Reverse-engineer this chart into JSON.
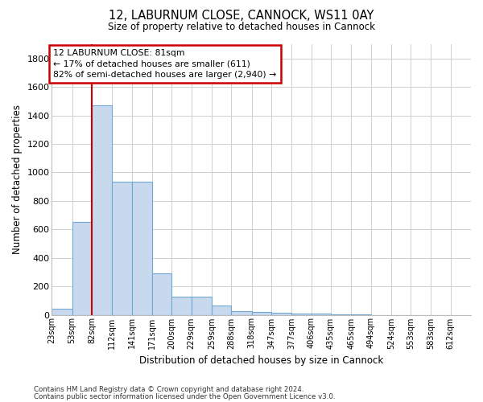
{
  "title_line1": "12, LABURNUM CLOSE, CANNOCK, WS11 0AY",
  "title_line2": "Size of property relative to detached houses in Cannock",
  "xlabel": "Distribution of detached houses by size in Cannock",
  "ylabel": "Number of detached properties",
  "bin_labels": [
    "23sqm",
    "53sqm",
    "82sqm",
    "112sqm",
    "141sqm",
    "171sqm",
    "200sqm",
    "229sqm",
    "259sqm",
    "288sqm",
    "318sqm",
    "347sqm",
    "377sqm",
    "406sqm",
    "435sqm",
    "465sqm",
    "494sqm",
    "524sqm",
    "553sqm",
    "583sqm",
    "612sqm"
  ],
  "bin_edges": [
    23,
    53,
    82,
    112,
    141,
    171,
    200,
    229,
    259,
    288,
    318,
    347,
    377,
    406,
    435,
    465,
    494,
    524,
    553,
    583,
    612
  ],
  "bar_heights": [
    40,
    650,
    1470,
    935,
    935,
    290,
    125,
    125,
    65,
    25,
    20,
    15,
    10,
    10,
    5,
    5,
    0,
    0,
    0,
    0
  ],
  "bar_color": "#c8d9ed",
  "bar_edge_color": "#6fa8d4",
  "grid_color": "#d0d0d0",
  "property_line_x": 82,
  "property_line_color": "#cc0000",
  "annotation_text": "12 LABURNUM CLOSE: 81sqm\n← 17% of detached houses are smaller (611)\n82% of semi-detached houses are larger (2,940) →",
  "annotation_box_color": "#cc0000",
  "ylim": [
    0,
    1900
  ],
  "yticks": [
    0,
    200,
    400,
    600,
    800,
    1000,
    1200,
    1400,
    1600,
    1800
  ],
  "footnote1": "Contains HM Land Registry data © Crown copyright and database right 2024.",
  "footnote2": "Contains public sector information licensed under the Open Government Licence v3.0.",
  "bg_color": "#ffffff"
}
